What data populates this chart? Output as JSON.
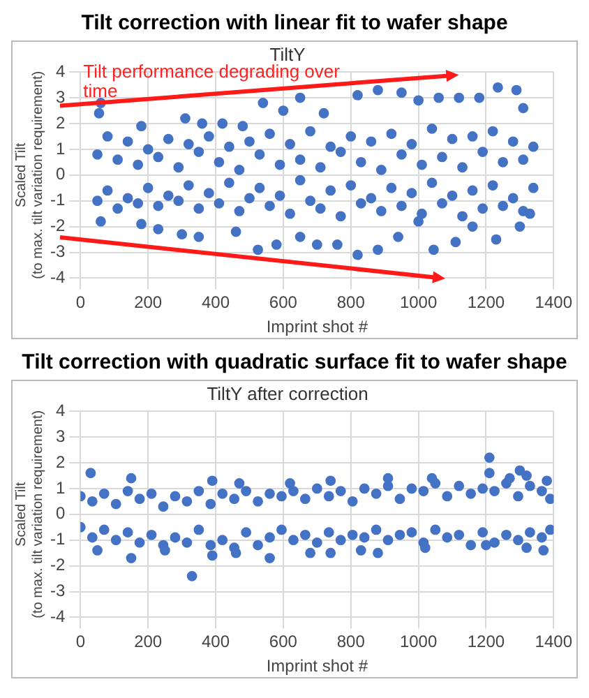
{
  "chart_data": [
    {
      "type": "scatter",
      "title": "Tilt correction with linear fit to wafer shape",
      "subtitle": "TiltY",
      "xlabel": "Imprint shot #",
      "ylabel": "Scaled Tilt\n(to max. tilt variation requirement)",
      "annotations": [
        "Tilt performance degrading over time"
      ],
      "color": "#4472c4",
      "marker": "circle",
      "grid": true,
      "xlim": [
        0,
        1400
      ],
      "xticks": [
        0,
        200,
        400,
        600,
        800,
        1000,
        1200,
        1400
      ],
      "ylim": [
        -4,
        4
      ],
      "yticks": [
        -4,
        -3,
        -2,
        -1,
        0,
        1,
        2,
        3,
        4
      ],
      "x": [
        50,
        50,
        80,
        80,
        110,
        110,
        140,
        140,
        170,
        170,
        200,
        200,
        230,
        230,
        260,
        260,
        290,
        290,
        320,
        320,
        350,
        350,
        380,
        380,
        410,
        410,
        440,
        440,
        470,
        470,
        500,
        500,
        530,
        530,
        560,
        560,
        590,
        590,
        620,
        620,
        650,
        650,
        680,
        680,
        710,
        710,
        740,
        740,
        770,
        770,
        800,
        800,
        830,
        830,
        860,
        860,
        890,
        890,
        920,
        920,
        950,
        950,
        980,
        980,
        1010,
        1010,
        1040,
        1040,
        1070,
        1070,
        1100,
        1100,
        1130,
        1130,
        1160,
        1160,
        1190,
        1190,
        1220,
        1220,
        1250,
        1250,
        1280,
        1280,
        1310,
        1310,
        1340,
        1340,
        60,
        55,
        880,
        1235,
        1290,
        650,
        540,
        820,
        1120,
        1000,
        950,
        1060,
        1180,
        1310,
        720,
        600,
        310,
        180,
        360,
        420,
        480,
        820,
        525,
        880,
        1045,
        580,
        700,
        760,
        1110,
        1230,
        1300,
        300,
        350,
        230,
        60,
        180,
        460,
        650,
        940,
        1000,
        1160,
        1330
      ],
      "values": [
        0.8,
        -1.0,
        1.5,
        -0.6,
        0.6,
        -1.3,
        1.3,
        -0.9,
        0.4,
        -1.1,
        1.0,
        -0.5,
        0.7,
        -1.2,
        1.4,
        -0.8,
        0.3,
        -1.0,
        1.2,
        -0.4,
        0.9,
        -1.3,
        1.5,
        -0.7,
        0.5,
        -1.1,
        1.1,
        -0.3,
        0.2,
        -1.4,
        1.3,
        -0.9,
        0.8,
        -0.5,
        1.6,
        -1.2,
        0.4,
        -0.8,
        1.2,
        -1.5,
        0.6,
        -0.2,
        1.7,
        -1.0,
        0.3,
        -1.3,
        1.1,
        -0.6,
        0.9,
        -1.6,
        1.5,
        -0.4,
        0.5,
        -1.1,
        1.3,
        -0.9,
        0.2,
        -1.4,
        1.6,
        -0.5,
        0.8,
        -1.2,
        1.2,
        -0.7,
        0.4,
        -1.5,
        1.8,
        -0.3,
        0.7,
        -1.1,
        1.4,
        -0.8,
        0.3,
        -1.6,
        1.5,
        -0.6,
        0.9,
        -1.3,
        1.7,
        -0.4,
        0.5,
        -1.2,
        1.3,
        -0.9,
        0.6,
        -1.4,
        1.1,
        -0.5,
        2.8,
        2.4,
        3.3,
        3.4,
        3.3,
        3.0,
        2.8,
        3.1,
        3.0,
        2.9,
        3.2,
        3.0,
        3.0,
        2.6,
        2.4,
        2.5,
        2.2,
        1.9,
        2.0,
        2.0,
        1.9,
        -3.1,
        -2.9,
        -2.9,
        -2.9,
        -2.7,
        -2.7,
        -2.7,
        -2.6,
        -2.5,
        -2.0,
        -2.3,
        -2.4,
        -2.1,
        -1.8,
        -1.9,
        -2.2,
        -2.4,
        -2.4,
        -1.8,
        -2.0,
        -1.5
      ]
    },
    {
      "type": "scatter",
      "title": "Tilt correction with quadratic surface fit to wafer shape",
      "subtitle": "TiltY after correction",
      "xlabel": "Imprint shot #",
      "ylabel": "Scaled Tilt\n(to max. tilt variation requirement)",
      "color": "#4472c4",
      "marker": "circle",
      "grid": true,
      "xlim": [
        0,
        1400
      ],
      "xticks": [
        0,
        200,
        400,
        600,
        800,
        1000,
        1200,
        1400
      ],
      "ylim": [
        -4,
        4
      ],
      "yticks": [
        -4,
        -3,
        -2,
        -1,
        0,
        1,
        2,
        3,
        4
      ],
      "x": [
        0,
        0,
        35,
        35,
        70,
        70,
        105,
        105,
        140,
        140,
        175,
        175,
        210,
        210,
        245,
        245,
        280,
        280,
        315,
        315,
        350,
        350,
        385,
        385,
        420,
        420,
        455,
        455,
        490,
        490,
        525,
        525,
        560,
        560,
        595,
        595,
        630,
        630,
        665,
        665,
        700,
        700,
        735,
        735,
        770,
        770,
        805,
        805,
        840,
        840,
        875,
        875,
        910,
        910,
        945,
        945,
        980,
        980,
        1015,
        1015,
        1050,
        1050,
        1085,
        1085,
        1120,
        1120,
        1155,
        1155,
        1190,
        1190,
        1225,
        1225,
        1260,
        1260,
        1295,
        1295,
        1330,
        1330,
        1365,
        1365,
        1390,
        1390,
        30,
        150,
        390,
        470,
        620,
        740,
        910,
        1040,
        1210,
        1210,
        1270,
        1300,
        1320,
        1380,
        330,
        150,
        390,
        560,
        460,
        680,
        740,
        830,
        880,
        1020,
        1200,
        1320,
        1370,
        250,
        50
      ],
      "values": [
        0.7,
        -0.5,
        0.5,
        -0.9,
        0.8,
        -0.6,
        0.4,
        -1.0,
        0.9,
        -0.7,
        0.6,
        -1.1,
        0.8,
        -0.8,
        0.3,
        -1.2,
        0.7,
        -0.9,
        0.5,
        -1.1,
        0.9,
        -0.6,
        0.4,
        -1.2,
        0.8,
        -1.0,
        0.6,
        -1.3,
        0.9,
        -0.7,
        0.5,
        -1.2,
        0.8,
        -0.9,
        0.7,
        -0.6,
        0.9,
        -1.0,
        0.6,
        -0.8,
        1.0,
        -1.1,
        0.7,
        -0.7,
        0.9,
        -1.0,
        0.5,
        -0.8,
        1.0,
        -0.9,
        0.8,
        -0.6,
        1.1,
        -1.0,
        0.6,
        -0.8,
        1.0,
        -0.7,
        0.9,
        -1.1,
        1.2,
        -0.6,
        0.7,
        -0.9,
        1.1,
        -0.8,
        0.8,
        -1.2,
        1.0,
        -0.7,
        0.9,
        -1.1,
        1.2,
        -0.8,
        0.7,
        -1.0,
        1.1,
        -0.7,
        0.9,
        -0.9,
        0.6,
        -0.6,
        1.6,
        1.4,
        1.3,
        1.2,
        1.2,
        1.3,
        1.4,
        1.4,
        2.2,
        1.6,
        1.4,
        1.7,
        1.5,
        1.3,
        -2.4,
        -1.7,
        -1.6,
        -1.7,
        -1.5,
        -1.5,
        -1.5,
        -1.4,
        -1.5,
        -1.3,
        -1.2,
        -1.3,
        -1.4,
        -1.4,
        -1.4
      ]
    }
  ]
}
